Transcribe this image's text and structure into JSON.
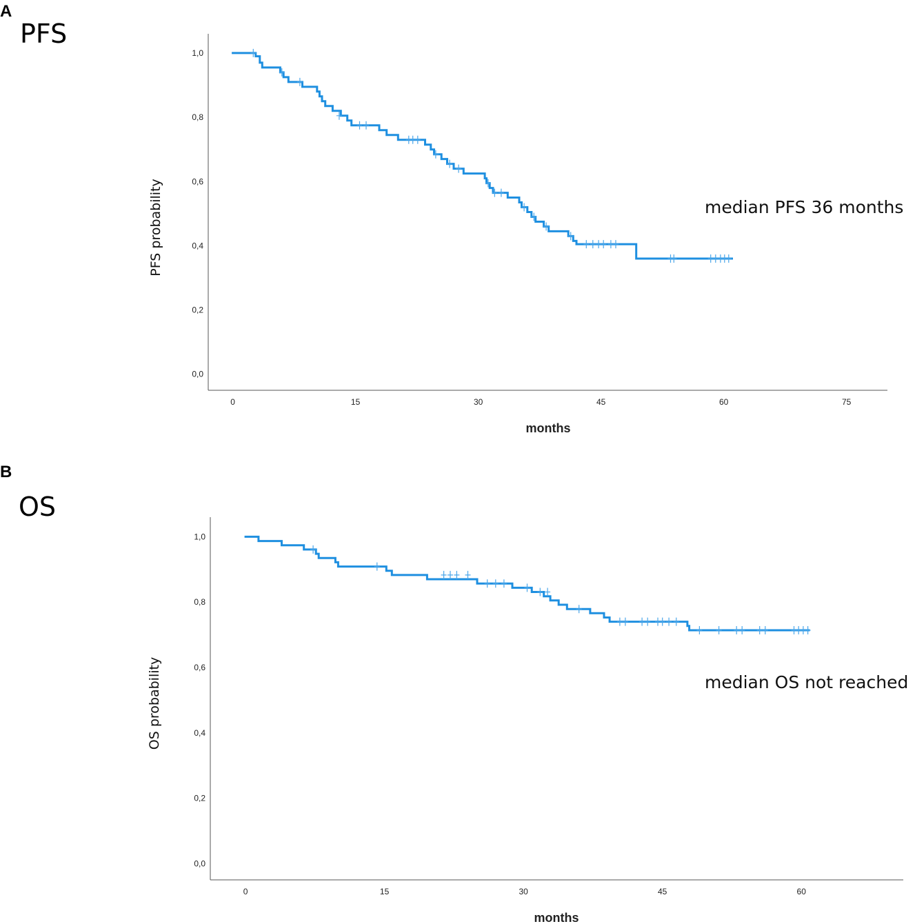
{
  "colors": {
    "curve": "#1e8fe0",
    "censor": "#4aa6ea",
    "axis": "#555555",
    "text": "#111111"
  },
  "chart_data": [
    {
      "type": "line",
      "panel": "A",
      "title": "PFS",
      "xlabel": "months",
      "ylabel": "PFS probability",
      "annotation": "median PFS 36 months",
      "xlim": [
        -3,
        80
      ],
      "ylim": [
        -0.05,
        1.06
      ],
      "xticks": [
        0,
        15,
        30,
        45,
        60,
        75
      ],
      "xtick_labels": [
        "0",
        "15",
        "30",
        "45",
        "60",
        "75"
      ],
      "yticks": [
        0,
        0.2,
        0.4,
        0.6,
        0.8,
        1.0
      ],
      "ytick_labels": [
        "0,0",
        "0,2",
        "0,4",
        "0,6",
        "0,8",
        "1,0"
      ],
      "series": [
        {
          "name": "PFS",
          "steps": [
            [
              0,
              1.0
            ],
            [
              2.8,
              0.99
            ],
            [
              3.3,
              0.97
            ],
            [
              3.6,
              0.955
            ],
            [
              5.8,
              0.94
            ],
            [
              6.2,
              0.925
            ],
            [
              6.8,
              0.91
            ],
            [
              8.5,
              0.895
            ],
            [
              10.3,
              0.88
            ],
            [
              10.6,
              0.865
            ],
            [
              10.9,
              0.85
            ],
            [
              11.3,
              0.835
            ],
            [
              12.2,
              0.82
            ],
            [
              13.2,
              0.805
            ],
            [
              14.0,
              0.79
            ],
            [
              14.5,
              0.775
            ],
            [
              17.9,
              0.76
            ],
            [
              18.8,
              0.745
            ],
            [
              20.2,
              0.73
            ],
            [
              23.5,
              0.715
            ],
            [
              24.2,
              0.7
            ],
            [
              24.6,
              0.685
            ],
            [
              25.5,
              0.67
            ],
            [
              26.2,
              0.655
            ],
            [
              27.0,
              0.64
            ],
            [
              28.2,
              0.625
            ],
            [
              30.8,
              0.61
            ],
            [
              31.0,
              0.595
            ],
            [
              31.4,
              0.58
            ],
            [
              31.8,
              0.565
            ],
            [
              33.6,
              0.55
            ],
            [
              35.0,
              0.535
            ],
            [
              35.3,
              0.52
            ],
            [
              36.0,
              0.505
            ],
            [
              36.5,
              0.49
            ],
            [
              37.0,
              0.475
            ],
            [
              38.0,
              0.46
            ],
            [
              38.6,
              0.445
            ],
            [
              41.0,
              0.43
            ],
            [
              41.6,
              0.415
            ],
            [
              42.0,
              0.405
            ],
            [
              49.3,
              0.36
            ],
            [
              61,
              0.36
            ]
          ],
          "censored": [
            [
              2.5,
              1.0
            ],
            [
              6.0,
              0.94
            ],
            [
              8.2,
              0.91
            ],
            [
              13.0,
              0.805
            ],
            [
              15.5,
              0.775
            ],
            [
              16.3,
              0.775
            ],
            [
              21.5,
              0.73
            ],
            [
              22.0,
              0.73
            ],
            [
              22.6,
              0.73
            ],
            [
              24.8,
              0.685
            ],
            [
              26.5,
              0.655
            ],
            [
              27.6,
              0.64
            ],
            [
              31.2,
              0.595
            ],
            [
              32.0,
              0.565
            ],
            [
              32.8,
              0.565
            ],
            [
              35.6,
              0.52
            ],
            [
              36.8,
              0.49
            ],
            [
              38.3,
              0.46
            ],
            [
              41.3,
              0.43
            ],
            [
              43.2,
              0.405
            ],
            [
              44.0,
              0.405
            ],
            [
              44.7,
              0.405
            ],
            [
              45.3,
              0.405
            ],
            [
              46.2,
              0.405
            ],
            [
              46.8,
              0.405
            ],
            [
              53.5,
              0.36
            ],
            [
              53.9,
              0.36
            ],
            [
              58.4,
              0.36
            ],
            [
              59.0,
              0.36
            ],
            [
              59.6,
              0.36
            ],
            [
              60.1,
              0.36
            ],
            [
              60.6,
              0.36
            ]
          ]
        }
      ]
    },
    {
      "type": "line",
      "panel": "B",
      "title": "OS",
      "xlabel": "months",
      "ylabel": "OS probability",
      "annotation": "median OS not reached",
      "xlim": [
        -3.8,
        71
      ],
      "ylim": [
        -0.05,
        1.06
      ],
      "xticks": [
        0,
        15,
        30,
        45,
        60
      ],
      "xtick_labels": [
        "0",
        "15",
        "30",
        "45",
        "60"
      ],
      "yticks": [
        0,
        0.2,
        0.4,
        0.6,
        0.8,
        1.0
      ],
      "ytick_labels": [
        "0,0",
        "0,2",
        "0,4",
        "0,6",
        "0,8",
        "1,0"
      ],
      "series": [
        {
          "name": "OS",
          "steps": [
            [
              0,
              1.0
            ],
            [
              1.4,
              0.987
            ],
            [
              3.9,
              0.974
            ],
            [
              6.3,
              0.961
            ],
            [
              7.6,
              0.948
            ],
            [
              7.9,
              0.935
            ],
            [
              9.7,
              0.922
            ],
            [
              10.0,
              0.909
            ],
            [
              15.2,
              0.896
            ],
            [
              15.8,
              0.883
            ],
            [
              19.6,
              0.87
            ],
            [
              25.0,
              0.857
            ],
            [
              28.8,
              0.844
            ],
            [
              30.9,
              0.831
            ],
            [
              32.2,
              0.818
            ],
            [
              32.9,
              0.805
            ],
            [
              33.8,
              0.792
            ],
            [
              34.7,
              0.779
            ],
            [
              37.2,
              0.766
            ],
            [
              38.7,
              0.753
            ],
            [
              39.3,
              0.74
            ],
            [
              47.7,
              0.727
            ],
            [
              47.9,
              0.714
            ],
            [
              60.8,
              0.714
            ]
          ],
          "censored": [
            [
              7.3,
              0.961
            ],
            [
              14.2,
              0.909
            ],
            [
              21.4,
              0.883
            ],
            [
              22.1,
              0.883
            ],
            [
              22.8,
              0.883
            ],
            [
              24.0,
              0.883
            ],
            [
              26.1,
              0.857
            ],
            [
              27.0,
              0.857
            ],
            [
              27.9,
              0.857
            ],
            [
              30.4,
              0.844
            ],
            [
              31.8,
              0.831
            ],
            [
              32.6,
              0.831
            ],
            [
              36.0,
              0.779
            ],
            [
              40.4,
              0.74
            ],
            [
              41.0,
              0.74
            ],
            [
              42.8,
              0.74
            ],
            [
              43.4,
              0.74
            ],
            [
              44.5,
              0.74
            ],
            [
              45.0,
              0.74
            ],
            [
              45.7,
              0.74
            ],
            [
              46.5,
              0.74
            ],
            [
              49.0,
              0.714
            ],
            [
              51.1,
              0.714
            ],
            [
              53.0,
              0.714
            ],
            [
              53.6,
              0.714
            ],
            [
              55.5,
              0.714
            ],
            [
              56.1,
              0.714
            ],
            [
              59.2,
              0.714
            ],
            [
              59.7,
              0.714
            ],
            [
              60.2,
              0.714
            ],
            [
              60.7,
              0.714
            ]
          ]
        }
      ]
    }
  ]
}
